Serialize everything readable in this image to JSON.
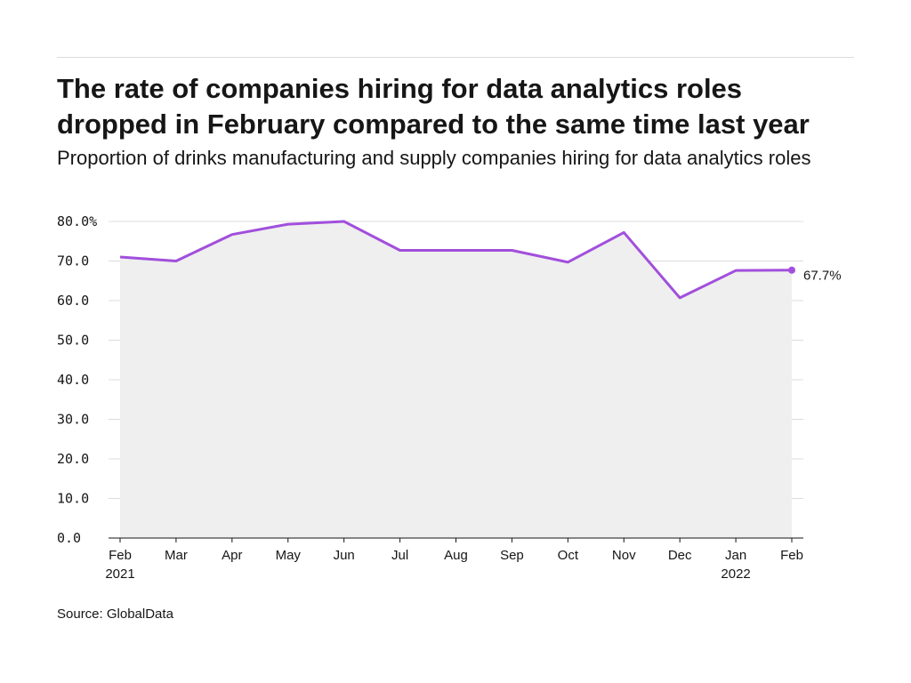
{
  "header": {
    "title": "The rate of companies hiring for data analytics roles dropped in February compared to the same time last year",
    "subtitle": "Proportion of drinks manufacturing and supply companies hiring for data analytics roles"
  },
  "footer": {
    "source": "Source: GlobalData"
  },
  "chart_data": {
    "type": "area",
    "categories": [
      "Feb",
      "Mar",
      "Apr",
      "May",
      "Jun",
      "Jul",
      "Aug",
      "Sep",
      "Oct",
      "Nov",
      "Dec",
      "Jan",
      "Feb"
    ],
    "year_labels": [
      "2021",
      "",
      "",
      "",
      "",
      "",
      "",
      "",
      "",
      "",
      "",
      "2022",
      ""
    ],
    "series": [
      {
        "values": [
          71.0,
          70.0,
          76.7,
          79.3,
          80.0,
          72.7,
          72.7,
          72.7,
          69.7,
          77.2,
          60.7,
          67.6,
          67.7
        ]
      }
    ],
    "end_label": "67.7%",
    "y_ticks": [
      "0.0",
      "10.0",
      "20.0",
      "30.0",
      "40.0",
      "50.0",
      "60.0",
      "70.0",
      "80.0%"
    ],
    "ylim": [
      0,
      80
    ],
    "grid": true,
    "colors": {
      "line": "#a14fdc",
      "area": "#efefef",
      "grid": "#dcdcdc",
      "axis": "#161616"
    }
  }
}
